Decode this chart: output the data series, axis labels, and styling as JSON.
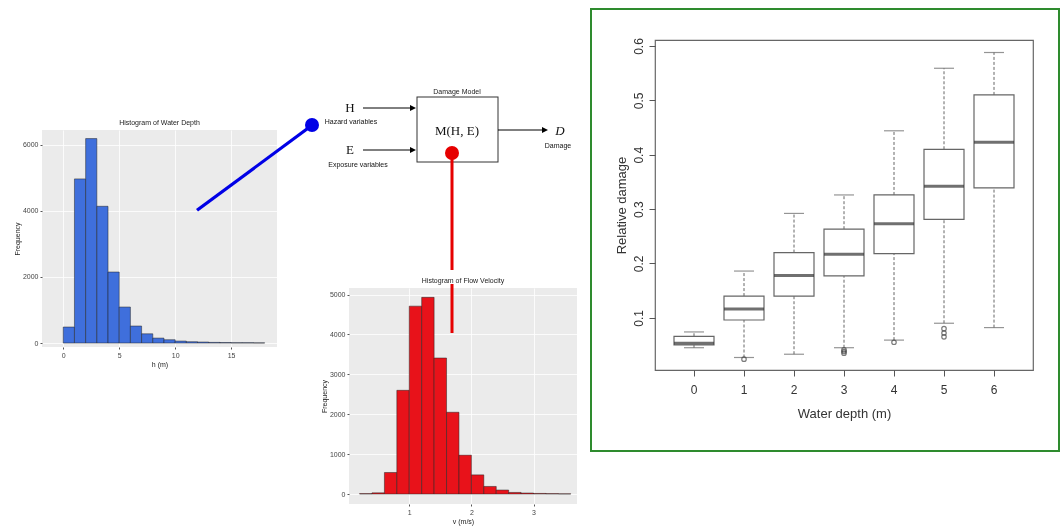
{
  "chart_data": [
    {
      "type": "histogram",
      "title": "Histogram of Water Depth",
      "xlabel": "h (m)",
      "ylabel": "Frequency",
      "bins": [
        0,
        1,
        2,
        3,
        4,
        5,
        6,
        7,
        8,
        9,
        10,
        11,
        12,
        13,
        14,
        15,
        16,
        17,
        18
      ],
      "series": [
        {
          "color": "#3f6fdc",
          "values": [
            485,
            4970,
            6190,
            4140,
            2150,
            1090,
            515,
            280,
            150,
            100,
            60,
            40,
            30,
            20,
            15,
            10,
            10,
            5
          ]
        }
      ],
      "xlim": [
        -1.9,
        19.1
      ],
      "xticks": [
        0,
        5,
        10,
        15
      ],
      "ylim": [
        -120,
        6450
      ],
      "yticks": [
        0,
        2000,
        4000,
        6000
      ],
      "grid": true
    },
    {
      "type": "other",
      "title": "Damage Model",
      "annotations": [
        "H",
        "Hazard variables",
        "E",
        "Exposure variables",
        "M(H, E)",
        "D",
        "Damage"
      ]
    },
    {
      "type": "histogram",
      "title": "Histogram of Flow Velocity",
      "xlabel": "v (m/s)",
      "ylabel": "Frequency",
      "bins": [
        0.2,
        0.4,
        0.6,
        0.8,
        1.0,
        1.2,
        1.4,
        1.6,
        1.8,
        2.0,
        2.2,
        2.4,
        2.6,
        2.8,
        3.0,
        3.2,
        3.4,
        3.6
      ],
      "series": [
        {
          "color": "#e8121a",
          "values": [
            10,
            30,
            540,
            2600,
            4710,
            4930,
            3410,
            2050,
            975,
            480,
            190,
            100,
            40,
            25,
            15,
            10,
            5
          ]
        }
      ],
      "xlim": [
        0.03,
        3.7
      ],
      "xticks": [
        1,
        2,
        3
      ],
      "ylim": [
        -250,
        5165
      ],
      "yticks": [
        0,
        1000,
        2000,
        3000,
        4000,
        5000
      ],
      "grid": true
    },
    {
      "type": "box",
      "xlabel": "Water depth (m)",
      "ylabel": "Relative damage",
      "categories": [
        "0",
        "1",
        "2",
        "3",
        "4",
        "5",
        "6"
      ],
      "boxes": [
        {
          "low": 0.045,
          "q1": 0.05,
          "median": 0.053,
          "q3": 0.066,
          "high": 0.074
        },
        {
          "low": 0.027,
          "q1": 0.096,
          "median": 0.116,
          "q3": 0.14,
          "high": 0.186,
          "outliers": [
            0.024
          ]
        },
        {
          "low": 0.033,
          "q1": 0.14,
          "median": 0.178,
          "q3": 0.22,
          "high": 0.292
        },
        {
          "low": 0.045,
          "q1": 0.177,
          "median": 0.217,
          "q3": 0.263,
          "high": 0.326,
          "outliers": [
            0.041,
            0.038,
            0.035
          ]
        },
        {
          "low": 0.059,
          "q1": 0.218,
          "median": 0.273,
          "q3": 0.326,
          "high": 0.444,
          "outliers": [
            0.055
          ]
        },
        {
          "low": 0.09,
          "q1": 0.281,
          "median": 0.342,
          "q3": 0.41,
          "high": 0.559,
          "outliers": [
            0.08,
            0.072,
            0.065
          ]
        },
        {
          "low": 0.082,
          "q1": 0.339,
          "median": 0.423,
          "q3": 0.51,
          "high": 0.588
        }
      ],
      "ylim": [
        0.004,
        0.611
      ],
      "yticks": [
        0.1,
        0.2,
        0.3,
        0.4,
        0.5,
        0.6
      ],
      "grid": false
    }
  ]
}
